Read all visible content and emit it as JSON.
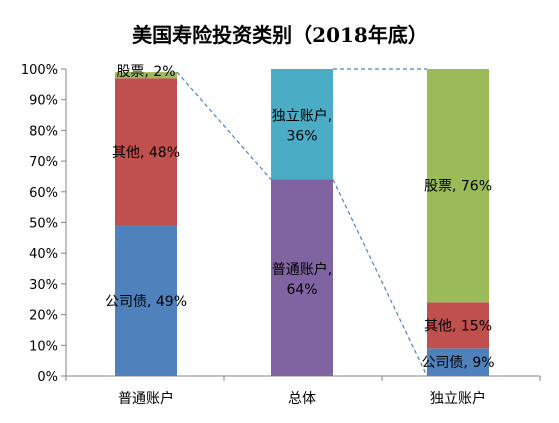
{
  "chart_data": {
    "type": "bar",
    "title": "美国寿险投资类别（2018年底）",
    "xlabel": "",
    "ylabel": "",
    "ylim": [
      0,
      100
    ],
    "y_ticks": [
      "0%",
      "10%",
      "20%",
      "30%",
      "40%",
      "50%",
      "60%",
      "70%",
      "80%",
      "90%",
      "100%"
    ],
    "grid": false,
    "legend": "none",
    "categories": [
      "普通账户",
      "总体",
      "独立账户"
    ],
    "bars": [
      {
        "category": "普通账户",
        "segments": [
          {
            "name": "公司债",
            "value": 49,
            "label": "公司债, 49%",
            "color": "#4F81BD"
          },
          {
            "name": "其他",
            "value": 48,
            "label": "其他, 48%",
            "color": "#C0504D"
          },
          {
            "name": "股票",
            "value": 2,
            "label": "股票, 2%",
            "color": "#9BBB59"
          }
        ]
      },
      {
        "category": "总体",
        "segments": [
          {
            "name": "普通账户",
            "value": 64,
            "label_lines": [
              "普通账户,",
              "64%"
            ],
            "color": "#8064A2"
          },
          {
            "name": "独立账户",
            "value": 36,
            "label_lines": [
              "独立账户,",
              "36%"
            ],
            "color": "#4BACC6"
          }
        ]
      },
      {
        "category": "独立账户",
        "segments": [
          {
            "name": "公司债",
            "value": 9,
            "label": "公司债, 9%",
            "color": "#4F81BD"
          },
          {
            "name": "其他",
            "value": 15,
            "label": "其他, 15%",
            "color": "#C0504D"
          },
          {
            "name": "股票",
            "value": 76,
            "label": "股票, 76%",
            "color": "#9BBB59"
          }
        ]
      }
    ],
    "connectors": "dashed",
    "connector_color": "#4F81BD",
    "axis_color": "#868686"
  }
}
